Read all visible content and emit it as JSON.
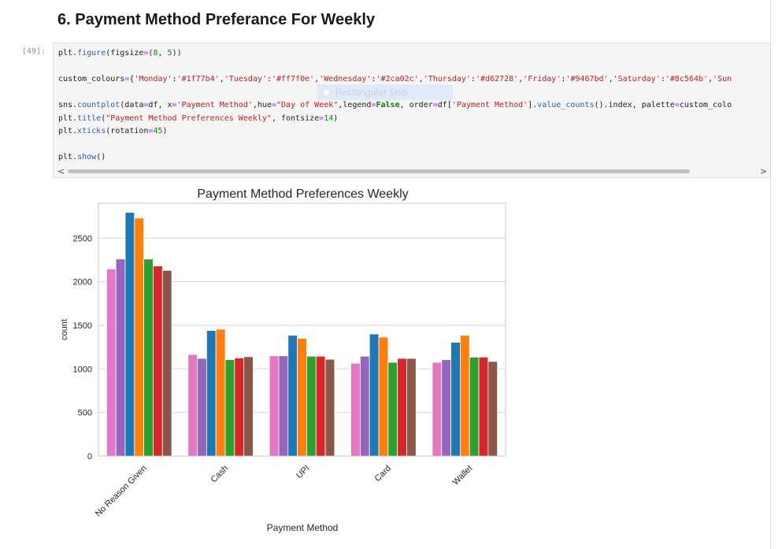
{
  "heading": "6. Payment Method Preferance For Weekly",
  "cell": {
    "prompt": "[49]:",
    "code_lines": [
      [
        {
          "t": "plt."
        },
        {
          "t": "figure",
          "c": "fn"
        },
        {
          "t": "(figsize"
        },
        {
          "t": "=",
          "c": "op"
        },
        {
          "t": "("
        },
        {
          "t": "8",
          "c": "nm"
        },
        {
          "t": ", "
        },
        {
          "t": "5",
          "c": "nm"
        },
        {
          "t": "))"
        }
      ],
      [],
      [
        {
          "t": "custom_colours"
        },
        {
          "t": "=",
          "c": "op"
        },
        {
          "t": "{"
        },
        {
          "t": "'Monday'",
          "c": "st"
        },
        {
          "t": ":"
        },
        {
          "t": "'#1f77b4'",
          "c": "st"
        },
        {
          "t": ","
        },
        {
          "t": "'Tuesday'",
          "c": "st"
        },
        {
          "t": ":"
        },
        {
          "t": "'#ff7f0e'",
          "c": "st"
        },
        {
          "t": ","
        },
        {
          "t": "'Wednesday'",
          "c": "st"
        },
        {
          "t": ":"
        },
        {
          "t": "'#2ca02c'",
          "c": "st"
        },
        {
          "t": ","
        },
        {
          "t": "'Thursday'",
          "c": "st"
        },
        {
          "t": ":"
        },
        {
          "t": "'#d62728'",
          "c": "st"
        },
        {
          "t": ","
        },
        {
          "t": "'Friday'",
          "c": "st"
        },
        {
          "t": ":"
        },
        {
          "t": "'#9467bd'",
          "c": "st"
        },
        {
          "t": ","
        },
        {
          "t": "'Saturday'",
          "c": "st"
        },
        {
          "t": ":"
        },
        {
          "t": "'#8c564b'",
          "c": "st"
        },
        {
          "t": ","
        },
        {
          "t": "'Sun",
          "c": "st"
        }
      ],
      [],
      [
        {
          "t": "sns."
        },
        {
          "t": "countplot",
          "c": "fn"
        },
        {
          "t": "(data"
        },
        {
          "t": "=",
          "c": "op"
        },
        {
          "t": "df, x"
        },
        {
          "t": "=",
          "c": "op"
        },
        {
          "t": "'Payment Method'",
          "c": "st"
        },
        {
          "t": ",hue"
        },
        {
          "t": "=",
          "c": "op"
        },
        {
          "t": "\"Day of Week\"",
          "c": "st"
        },
        {
          "t": ",legend"
        },
        {
          "t": "=",
          "c": "op"
        },
        {
          "t": "False",
          "c": "kw"
        },
        {
          "t": ", order"
        },
        {
          "t": "=",
          "c": "op"
        },
        {
          "t": "df["
        },
        {
          "t": "'Payment Method'",
          "c": "st"
        },
        {
          "t": "]."
        },
        {
          "t": "value_counts",
          "c": "fn"
        },
        {
          "t": "().index, palette"
        },
        {
          "t": "=",
          "c": "op"
        },
        {
          "t": "custom_colo"
        }
      ],
      [
        {
          "t": "plt."
        },
        {
          "t": "title",
          "c": "fn"
        },
        {
          "t": "("
        },
        {
          "t": "\"Payment Method Preferences Weekly\"",
          "c": "st"
        },
        {
          "t": ", fontsize"
        },
        {
          "t": "=",
          "c": "op"
        },
        {
          "t": "14",
          "c": "nm"
        },
        {
          "t": ")"
        }
      ],
      [
        {
          "t": "plt."
        },
        {
          "t": "xticks",
          "c": "fn"
        },
        {
          "t": "(rotation"
        },
        {
          "t": "=",
          "c": "op"
        },
        {
          "t": "45",
          "c": "nm"
        },
        {
          "t": ")"
        }
      ],
      [],
      [
        {
          "t": "plt."
        },
        {
          "t": "show",
          "c": "fn"
        },
        {
          "t": "()"
        }
      ]
    ],
    "snip_label": "Rectangular Snip",
    "scroll_left": "<",
    "scroll_right": ">"
  },
  "chart_data": {
    "type": "bar",
    "title": "Payment Method Preferences Weekly",
    "xlabel": "Payment Method",
    "ylabel": "count",
    "categories": [
      "No Reason Given",
      "Cash",
      "UPI",
      "Card",
      "Wallet"
    ],
    "yticks": [
      0,
      500,
      1000,
      1500,
      2000,
      2500
    ],
    "ylim": [
      0,
      2900
    ],
    "grid": true,
    "series_colors": [
      "#e377c2",
      "#9467bd",
      "#1f77b4",
      "#ff7f0e",
      "#2ca02c",
      "#d62728",
      "#8c564b"
    ],
    "series": [
      {
        "values": [
          2145,
          1165,
          1150,
          1065,
          1075
        ]
      },
      {
        "values": [
          2260,
          1120,
          1150,
          1145,
          1105
        ]
      },
      {
        "values": [
          2795,
          1440,
          1385,
          1400,
          1305
        ]
      },
      {
        "values": [
          2730,
          1455,
          1350,
          1365,
          1385
        ]
      },
      {
        "values": [
          2260,
          1105,
          1145,
          1075,
          1135
        ]
      },
      {
        "values": [
          2180,
          1125,
          1145,
          1120,
          1135
        ]
      },
      {
        "values": [
          2130,
          1140,
          1110,
          1120,
          1085
        ]
      }
    ]
  }
}
